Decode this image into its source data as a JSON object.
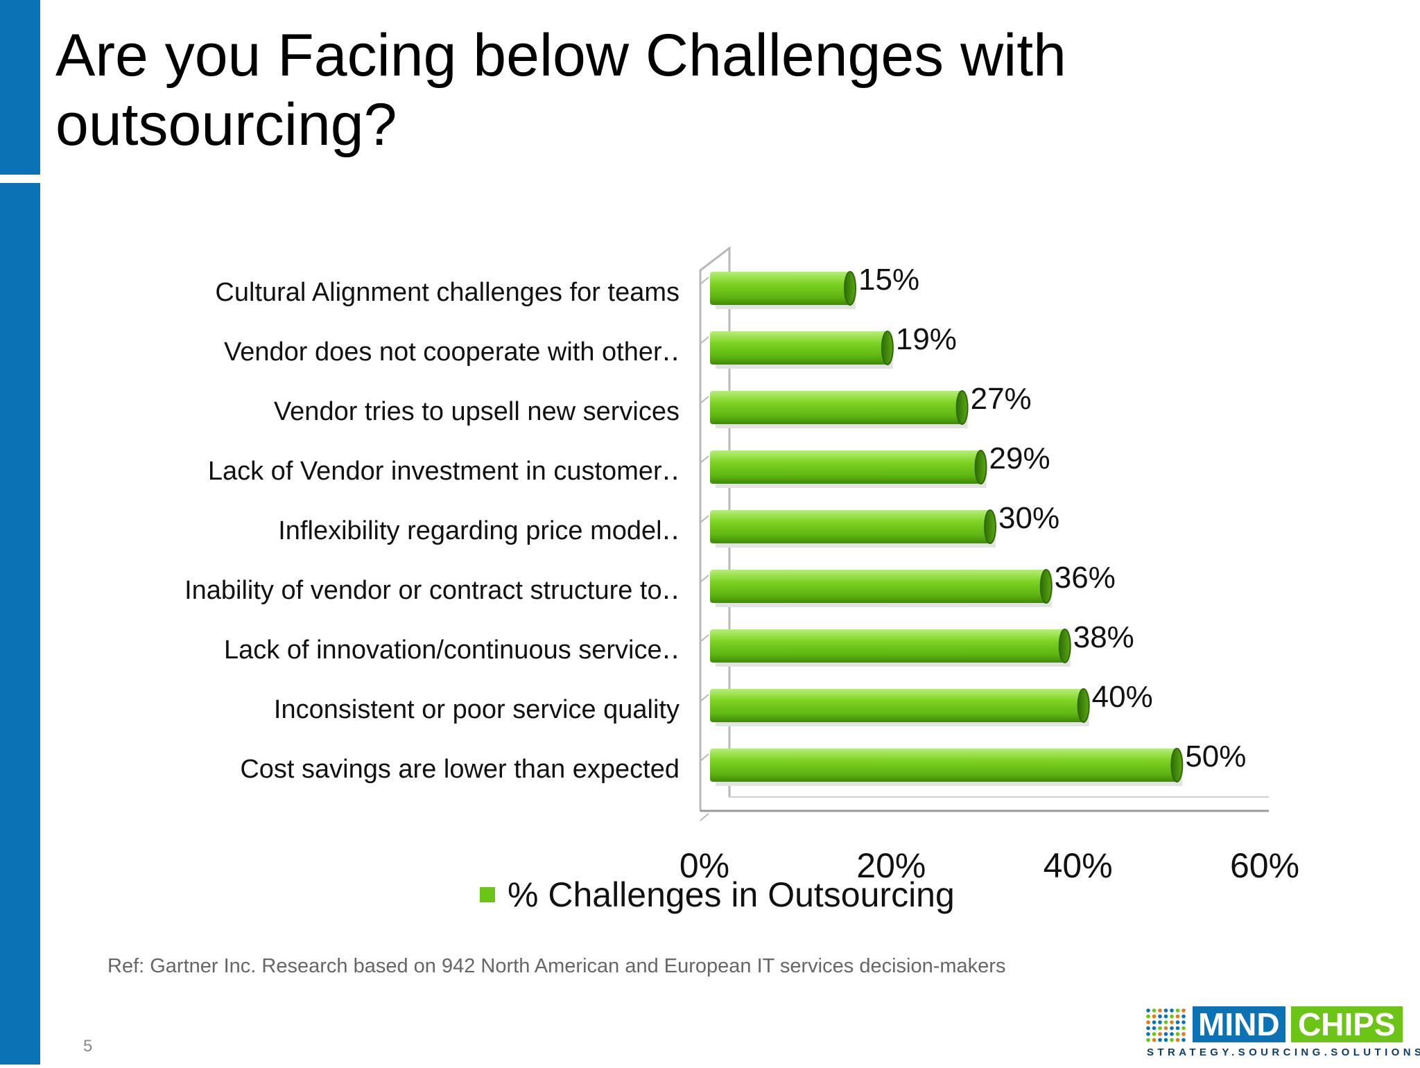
{
  "title": "Are you Facing below Challenges with outsourcing?",
  "colors": {
    "accent_blue": "#0a72b5",
    "bar_green": "#6cc417",
    "bar_dark_green": "#3c8a0a"
  },
  "chart_data": {
    "type": "bar",
    "orientation": "horizontal",
    "categories": [
      "Cultural Alignment challenges for teams",
      "Vendor does not cooperate with other‥",
      "Vendor tries to upsell new services",
      "Lack of Vendor investment in customer‥",
      "Inflexibility regarding price model‥",
      "Inability of vendor or contract structure to‥",
      "Lack of innovation/continuous service‥",
      "Inconsistent or poor service quality",
      "Cost savings are lower than expected"
    ],
    "series": [
      {
        "name": "% Challenges in Outsourcing",
        "values": [
          15,
          19,
          27,
          29,
          30,
          36,
          38,
          40,
          50
        ]
      }
    ],
    "data_labels": [
      "15%",
      "19%",
      "27%",
      "29%",
      "30%",
      "36%",
      "38%",
      "40%",
      "50%"
    ],
    "xlim": [
      0,
      60
    ],
    "x_ticks": [
      "0%",
      "20%",
      "40%",
      "60%"
    ],
    "grid": false,
    "legend_position": "bottom"
  },
  "reference": "Ref: Gartner Inc. Research based on 942 North American and European IT services decision-makers",
  "page_number": "5",
  "logo": {
    "part1": "MIND",
    "part2": "CHIPS",
    "tagline": "STRATEGY.SOURCING.SOLUTIONS"
  }
}
